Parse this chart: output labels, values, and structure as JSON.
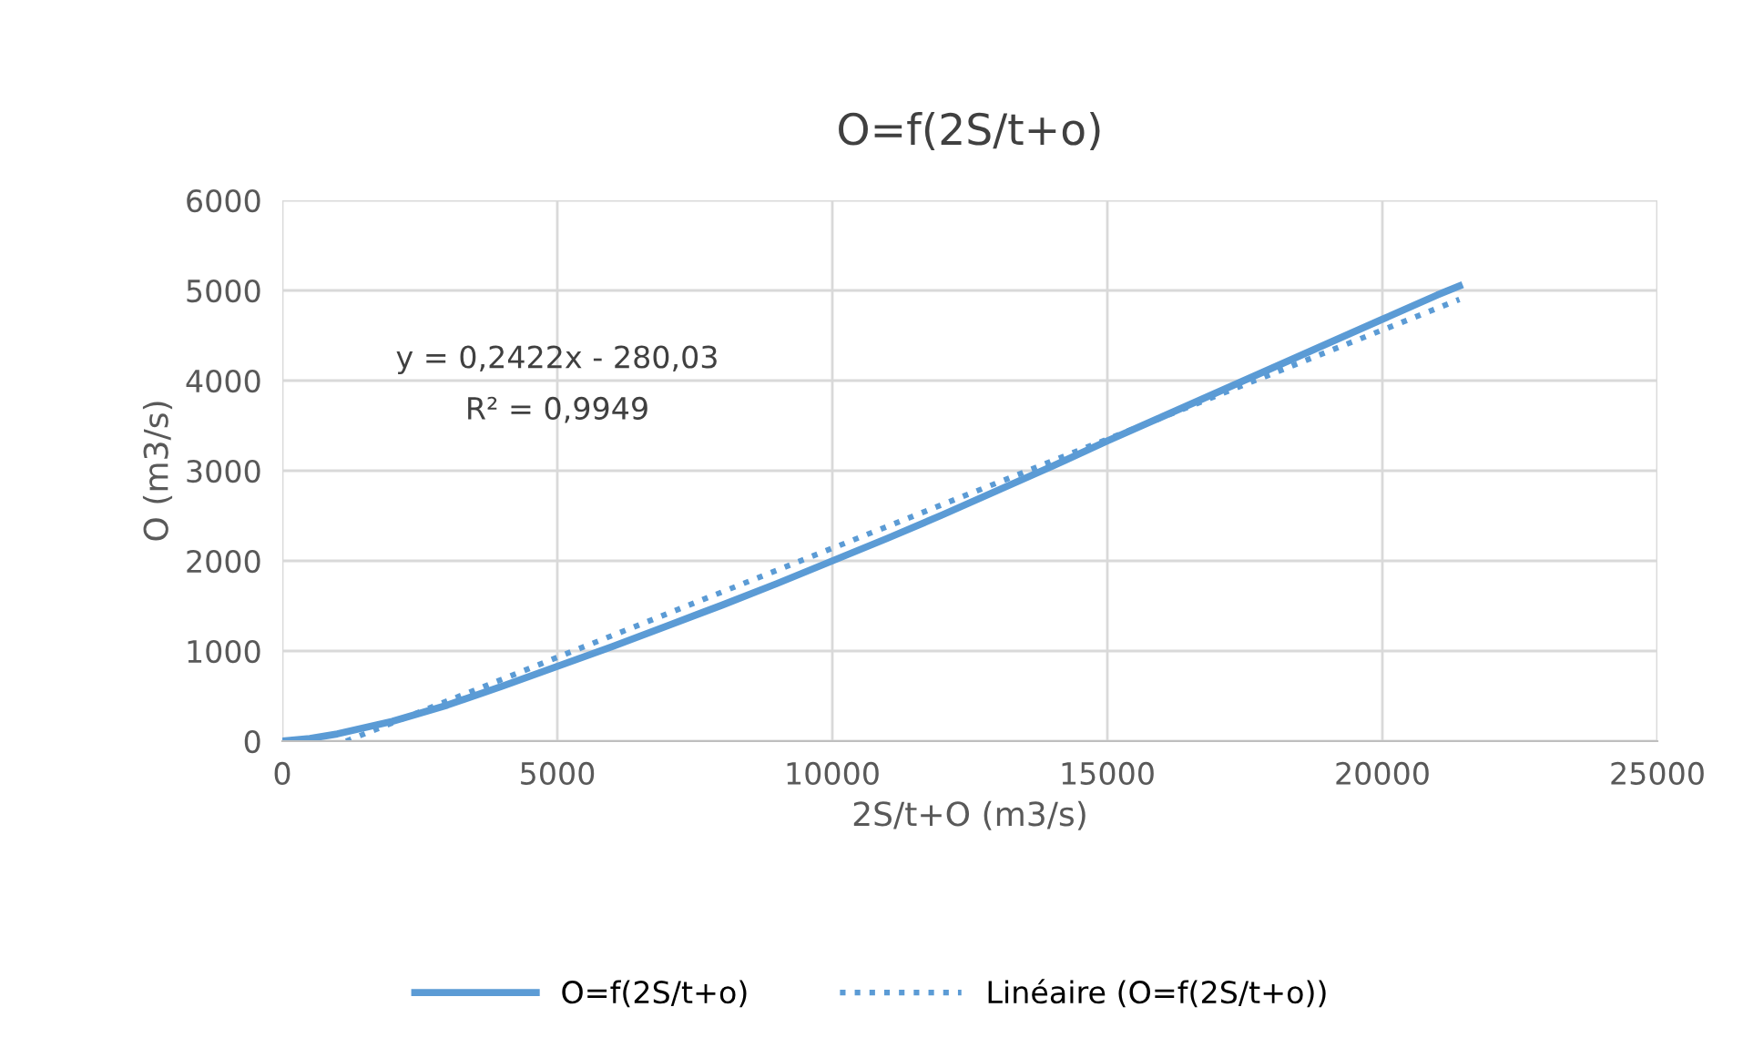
{
  "chart_data": {
    "type": "line",
    "title": "O=f(2S/t+o)",
    "xlabel": "2S/t+O (m3/s)",
    "ylabel": "O (m3/s)",
    "series": [
      {
        "name": "O=f(2S/t+o)",
        "color": "#5b9bd5",
        "line_style": "solid",
        "x": [
          0,
          500,
          1000,
          2000,
          3000,
          4000,
          5000,
          6000,
          7000,
          8000,
          9000,
          10000,
          11000,
          12000,
          13000,
          14000,
          15000,
          16000,
          17000,
          18000,
          19000,
          20000,
          21000,
          21400
        ],
        "values": [
          0,
          30,
          80,
          220,
          400,
          610,
          830,
          1050,
          1280,
          1510,
          1750,
          2000,
          2250,
          2510,
          2780,
          3050,
          3330,
          3600,
          3870,
          4140,
          4410,
          4680,
          4950,
          5050
        ]
      },
      {
        "name": "Linéaire (O=f(2S/t+o))",
        "color": "#5b9bd5",
        "line_style": "dotted",
        "x": [
          1160,
          21400
        ],
        "values": [
          0,
          4900
        ]
      }
    ],
    "annotations": [
      "y = 0,2422x - 280,03",
      "R² = 0,9949"
    ],
    "xlim": [
      0,
      25000
    ],
    "xticks": [
      0,
      5000,
      10000,
      15000,
      20000,
      25000
    ],
    "ylim": [
      0,
      6000
    ],
    "yticks": [
      0,
      1000,
      2000,
      3000,
      4000,
      5000,
      6000
    ],
    "grid": true,
    "legend": "bottom"
  }
}
